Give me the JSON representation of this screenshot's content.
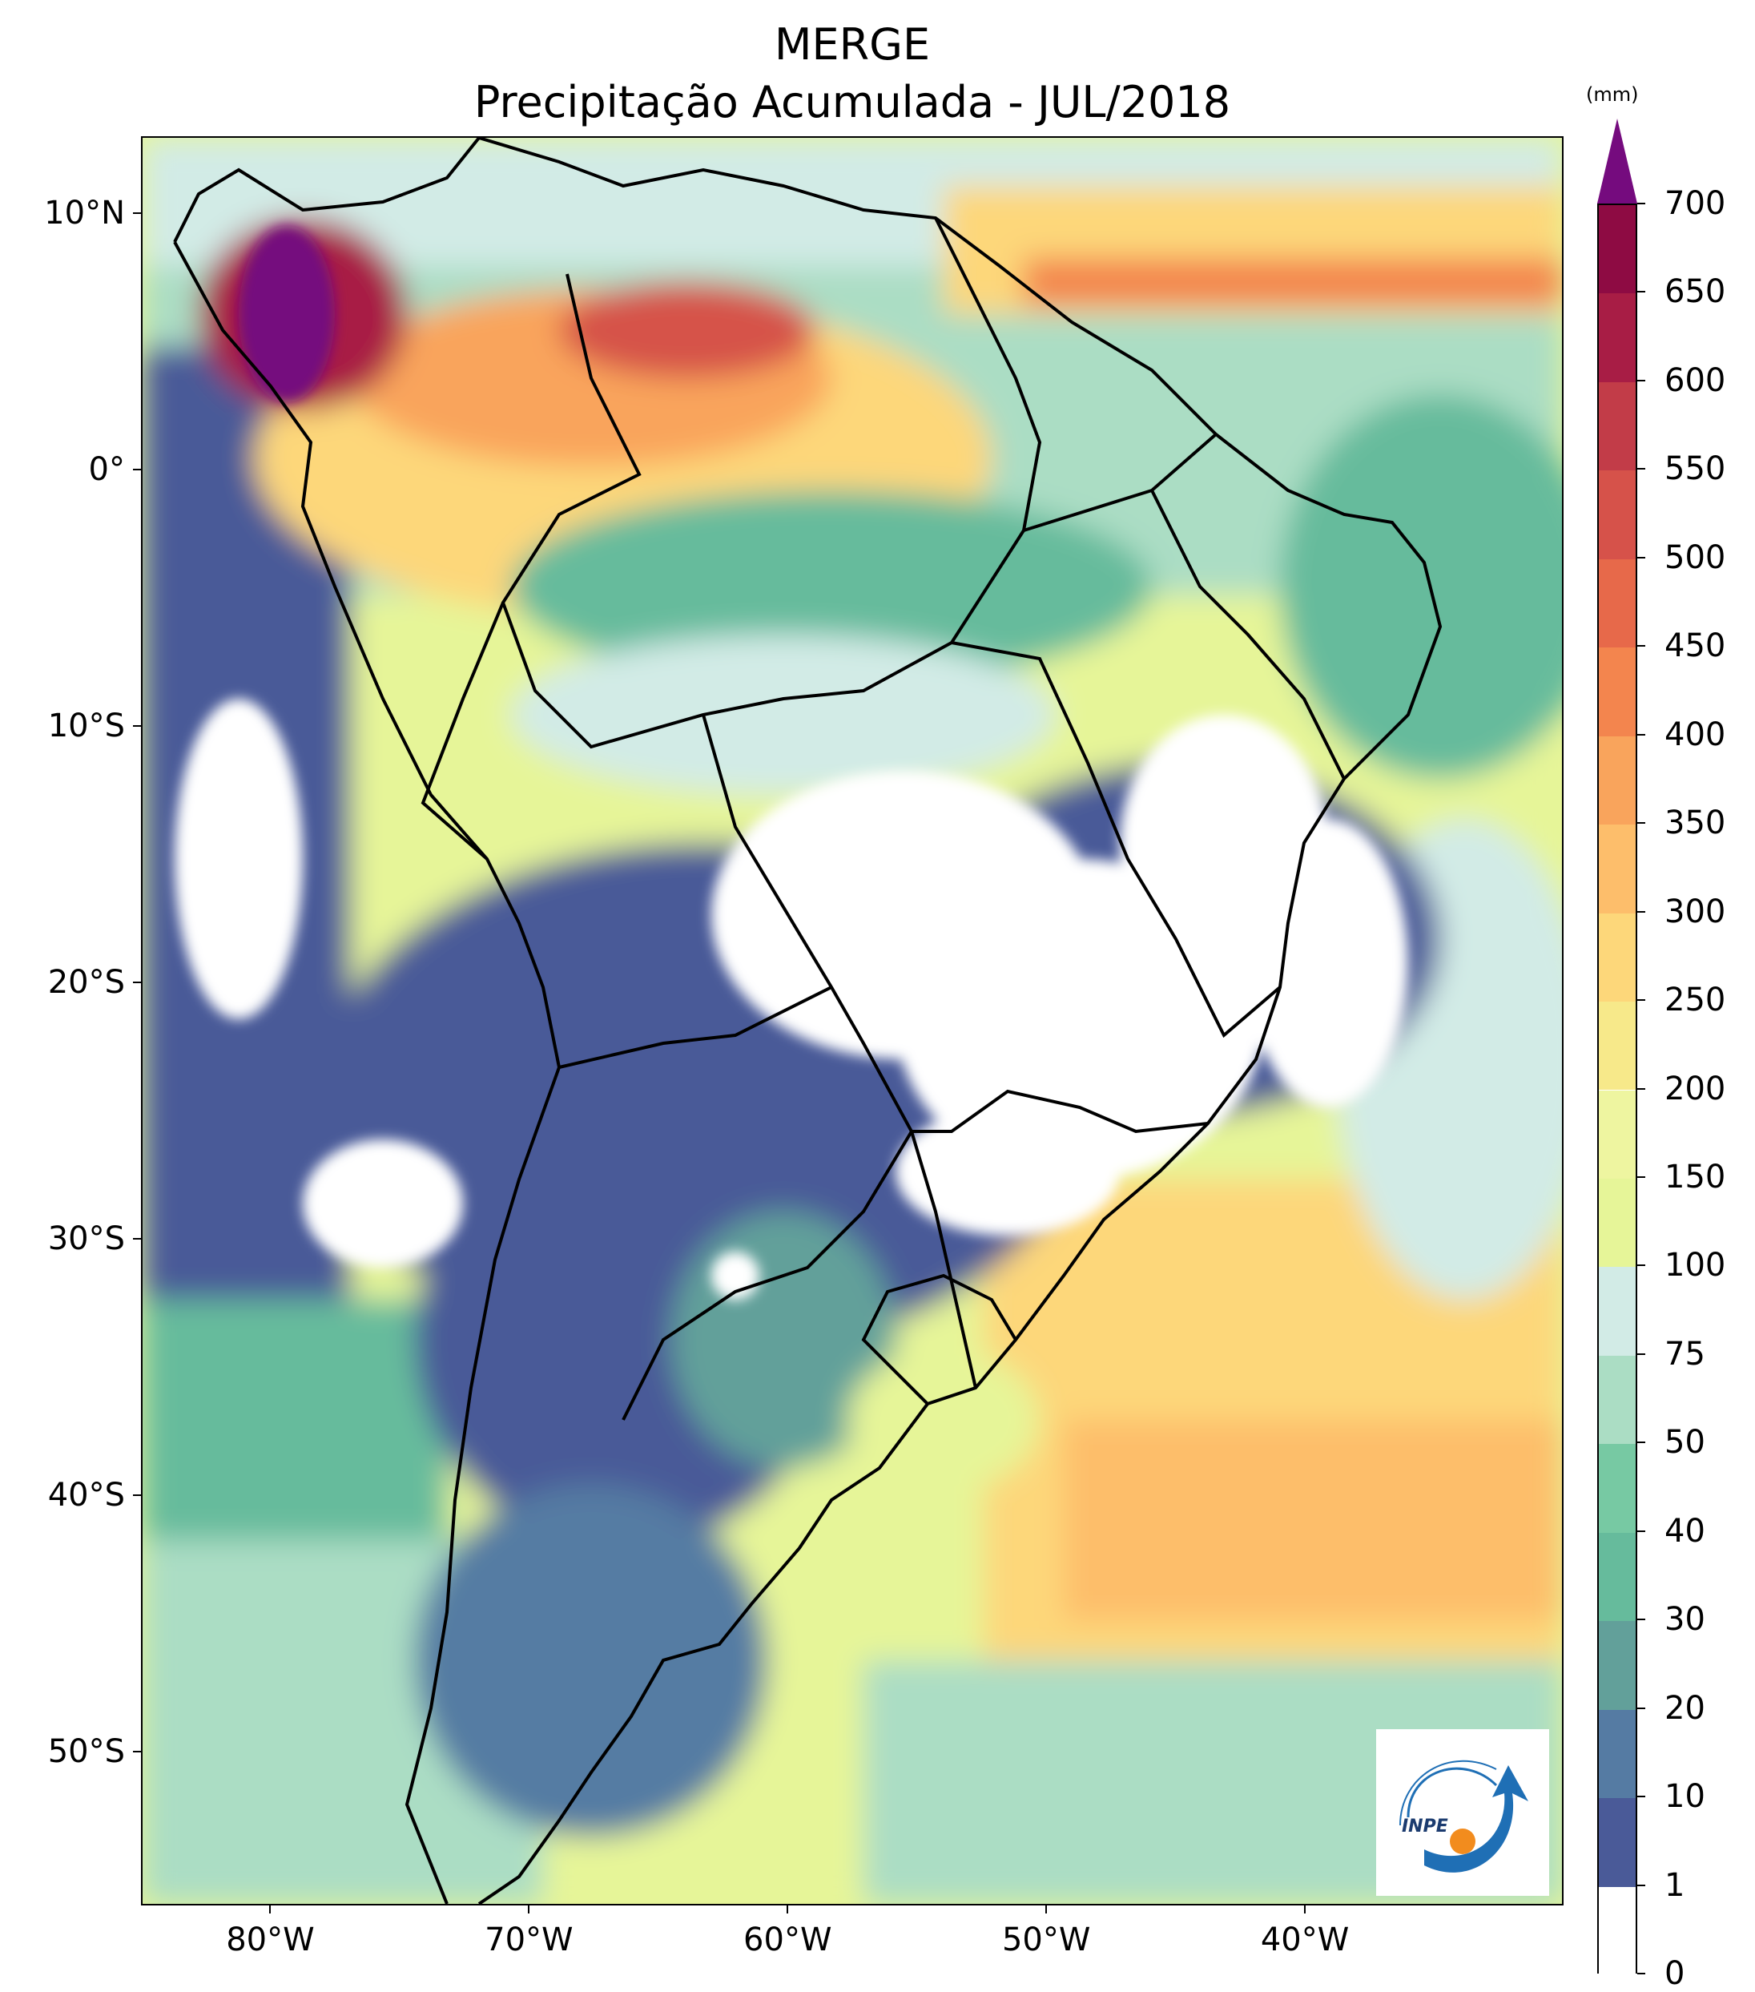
{
  "header": {
    "title_line1": "MERGE",
    "title_line2": "Precipitação Acumulada - JUL/2018"
  },
  "axes": {
    "lat_ticks": [
      {
        "label": "10°N",
        "value": 10
      },
      {
        "label": "0°",
        "value": 0
      },
      {
        "label": "10°S",
        "value": -10
      },
      {
        "label": "20°S",
        "value": -20
      },
      {
        "label": "30°S",
        "value": -30
      },
      {
        "label": "40°S",
        "value": -40
      },
      {
        "label": "50°S",
        "value": -50
      }
    ],
    "lon_ticks": [
      {
        "label": "80°W",
        "value": -80
      },
      {
        "label": "70°W",
        "value": -70
      },
      {
        "label": "60°W",
        "value": -60
      },
      {
        "label": "50°W",
        "value": -50
      },
      {
        "label": "40°W",
        "value": -40
      }
    ],
    "lat_range": [
      -56,
      13
    ],
    "lon_range": [
      -85,
      -30
    ]
  },
  "colorbar": {
    "unit": "(mm)",
    "levels": [
      "0",
      "1",
      "10",
      "20",
      "30",
      "40",
      "50",
      "75",
      "100",
      "150",
      "200",
      "250",
      "300",
      "350",
      "400",
      "450",
      "500",
      "550",
      "600",
      "650",
      "700"
    ],
    "colors": [
      "#ffffff",
      "#4a5a98",
      "#557ba3",
      "#62a09a",
      "#66bb9c",
      "#77c9a3",
      "#abddc4",
      "#d2ebe6",
      "#e6f598",
      "#eef5a0",
      "#f7e98a",
      "#fdd77a",
      "#fdbe6b",
      "#f9a45c",
      "#f3854e",
      "#e7694a",
      "#d6524a",
      "#c23c48",
      "#a81d45",
      "#8e0b43"
    ],
    "extend_color": "#750b7e"
  },
  "logo": {
    "text": "INPE"
  }
}
